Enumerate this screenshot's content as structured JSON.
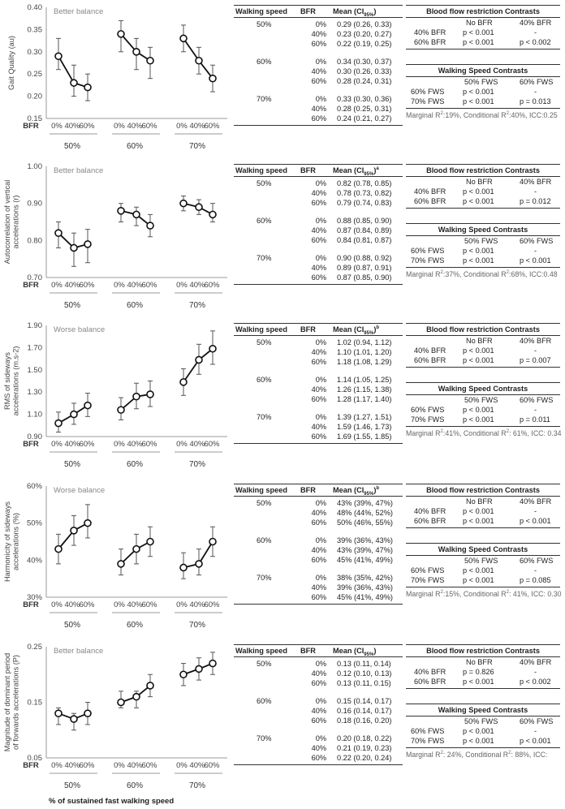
{
  "x_axis_title": "% of sustained fast walking speed",
  "bfr_axis_label": "BFR",
  "table_headers": {
    "speed": "Walking speed",
    "bfr": "BFR",
    "mean": "Mean (CI",
    "ci_sub": "95%",
    "close": ")"
  },
  "contrast_titles": {
    "bfr": "Blood flow restriction Contrasts",
    "speed": "Walking Speed Contrasts"
  },
  "contrast_cols": {
    "bfr": [
      "No BFR",
      "40% BFR"
    ],
    "speed": [
      "50% FWS",
      "60% FWS"
    ]
  },
  "contrast_rows": {
    "bfr": [
      "40% BFR",
      "60% BFR"
    ],
    "speed": [
      "60% FWS",
      "70% FWS"
    ]
  },
  "panels": [
    {
      "chart_data": {
        "type": "line",
        "ylabel": "Gait Quality (au)",
        "annotation": "Better balance",
        "ylim": [
          0.15,
          0.4
        ],
        "yticks": [
          "0.40",
          "0.35",
          "0.30",
          "0.25",
          "0.20",
          "0.15"
        ],
        "ytick_values": [
          0.4,
          0.35,
          0.3,
          0.25,
          0.2,
          0.15
        ],
        "groups": [
          "50%",
          "60%",
          "70%"
        ],
        "bfr_levels": [
          "0%",
          "40%",
          "60%"
        ],
        "values": [
          [
            0.29,
            0.23,
            0.22
          ],
          [
            0.34,
            0.3,
            0.28
          ],
          [
            0.33,
            0.28,
            0.24
          ]
        ],
        "ci_low": [
          [
            0.26,
            0.2,
            0.19
          ],
          [
            0.3,
            0.26,
            0.24
          ],
          [
            0.3,
            0.25,
            0.21
          ]
        ],
        "ci_high": [
          [
            0.33,
            0.27,
            0.25
          ],
          [
            0.37,
            0.33,
            0.31
          ],
          [
            0.36,
            0.31,
            0.27
          ]
        ]
      },
      "header_mark": "",
      "table": [
        [
          "50%",
          "0%",
          "0.29 (0.26, 0.33)"
        ],
        [
          "",
          "40%",
          "0.23 (0.20, 0.27)"
        ],
        [
          "",
          "60%",
          "0.22 (0.19, 0.25)"
        ],
        [
          "60%",
          "0%",
          "0.34 (0.30, 0.37)"
        ],
        [
          "",
          "40%",
          "0.30 (0.26, 0.33)"
        ],
        [
          "",
          "60%",
          "0.28 (0.24, 0.31)"
        ],
        [
          "70%",
          "0%",
          "0.33 (0.30, 0.36)"
        ],
        [
          "",
          "40%",
          "0.28 (0.25, 0.31)"
        ],
        [
          "",
          "60%",
          "0.24 (0.21, 0.27)"
        ]
      ],
      "bfr_contrasts": [
        [
          "p < 0.001",
          "-"
        ],
        [
          "p < 0.001",
          "p < 0.002"
        ]
      ],
      "speed_contrasts": [
        [
          "p < 0.001",
          "-"
        ],
        [
          "p < 0.001",
          "p = 0.013"
        ]
      ],
      "marginal": "Marginal R",
      "marginal_r2": "19%",
      "conditional_r2": "40%",
      "icc": "0.25"
    },
    {
      "chart_data": {
        "type": "line",
        "ylabel": "Autocorrelation of vertical accelerations (r)",
        "annotation": "Better balance",
        "ylim": [
          0.7,
          1.0
        ],
        "yticks": [
          "1.00",
          "0.90",
          "0.80",
          "0.70"
        ],
        "ytick_values": [
          1.0,
          0.9,
          0.8,
          0.7
        ],
        "groups": [
          "50%",
          "60%",
          "70%"
        ],
        "bfr_levels": [
          "0%",
          "40%",
          "60%"
        ],
        "values": [
          [
            0.82,
            0.78,
            0.79
          ],
          [
            0.88,
            0.87,
            0.84
          ],
          [
            0.9,
            0.89,
            0.87
          ]
        ],
        "ci_low": [
          [
            0.78,
            0.73,
            0.74
          ],
          [
            0.85,
            0.84,
            0.81
          ],
          [
            0.88,
            0.87,
            0.85
          ]
        ],
        "ci_high": [
          [
            0.85,
            0.82,
            0.83
          ],
          [
            0.9,
            0.89,
            0.87
          ],
          [
            0.92,
            0.91,
            0.9
          ]
        ]
      },
      "header_mark": "a",
      "table": [
        [
          "50%",
          "0%",
          "0.82 (0.78, 0.85)"
        ],
        [
          "",
          "40%",
          "0.78 (0.73, 0.82)"
        ],
        [
          "",
          "60%",
          "0.79 (0.74, 0.83)"
        ],
        [
          "60%",
          "0%",
          "0.88 (0.85, 0.90)"
        ],
        [
          "",
          "40%",
          "0.87 (0.84, 0.89)"
        ],
        [
          "",
          "60%",
          "0.84 (0.81, 0.87)"
        ],
        [
          "70%",
          "0%",
          "0.90 (0.88, 0.92)"
        ],
        [
          "",
          "40%",
          "0.89 (0.87, 0.91)"
        ],
        [
          "",
          "60%",
          "0.87 (0.85, 0.90)"
        ]
      ],
      "bfr_contrasts": [
        [
          "p < 0.001",
          "-"
        ],
        [
          "p < 0.001",
          "p = 0.012"
        ]
      ],
      "speed_contrasts": [
        [
          "p < 0.001",
          "-"
        ],
        [
          "p < 0.001",
          "p < 0.001"
        ]
      ],
      "marginal": "Marginal R",
      "marginal_r2": "37%",
      "conditional_r2": "68%",
      "icc": "0.48"
    },
    {
      "chart_data": {
        "type": "line",
        "ylabel": "RMS of sideways accelerations (m.s-2)",
        "annotation": "Worse balance",
        "ylim": [
          0.9,
          1.9
        ],
        "yticks": [
          "1.90",
          "1.70",
          "1.50",
          "1.30",
          "1.10",
          "0.90"
        ],
        "ytick_values": [
          1.9,
          1.7,
          1.5,
          1.3,
          1.1,
          0.9
        ],
        "groups": [
          "50%",
          "60%",
          "70%"
        ],
        "bfr_levels": [
          "0%",
          "40%",
          "60%"
        ],
        "values": [
          [
            1.02,
            1.1,
            1.18
          ],
          [
            1.14,
            1.26,
            1.28
          ],
          [
            1.39,
            1.59,
            1.69
          ]
        ],
        "ci_low": [
          [
            0.94,
            1.01,
            1.08
          ],
          [
            1.05,
            1.15,
            1.17
          ],
          [
            1.27,
            1.46,
            1.55
          ]
        ],
        "ci_high": [
          [
            1.12,
            1.2,
            1.29
          ],
          [
            1.25,
            1.38,
            1.4
          ],
          [
            1.51,
            1.73,
            1.85
          ]
        ]
      },
      "header_mark": "b",
      "table": [
        [
          "50%",
          "0%",
          "1.02 (0.94, 1.12)"
        ],
        [
          "",
          "40%",
          "1.10 (1.01, 1.20)"
        ],
        [
          "",
          "60%",
          "1.18 (1.08, 1.29)"
        ],
        [
          "60%",
          "0%",
          "1.14 (1.05, 1.25)"
        ],
        [
          "",
          "40%",
          "1.26 (1.15, 1.38)"
        ],
        [
          "",
          "60%",
          "1.28 (1.17, 1.40)"
        ],
        [
          "70%",
          "0%",
          "1.39 (1.27, 1.51)"
        ],
        [
          "",
          "40%",
          "1.59 (1.46, 1.73)"
        ],
        [
          "",
          "60%",
          "1.69 (1.55, 1.85)"
        ]
      ],
      "bfr_contrasts": [
        [
          "p < 0.001",
          "-"
        ],
        [
          "p < 0.001",
          "p = 0.007"
        ]
      ],
      "speed_contrasts": [
        [
          "p < 0.001",
          "-"
        ],
        [
          "p < 0.001",
          "p = 0.011"
        ]
      ],
      "marginal": "Marginal R",
      "marginal_r2": "41%",
      "conditional_r2": " 61%",
      "icc": " 0.34"
    },
    {
      "chart_data": {
        "type": "line",
        "ylabel": "Harmonicity of sideways accelerations (%)",
        "annotation": "Worse balance",
        "ylim": [
          30,
          60
        ],
        "yticks": [
          "60%",
          "50%",
          "40%",
          "30%"
        ],
        "ytick_values": [
          60,
          50,
          40,
          30
        ],
        "groups": [
          "50%",
          "60%",
          "70%"
        ],
        "bfr_levels": [
          "0%",
          "40%",
          "60%"
        ],
        "values": [
          [
            43,
            48,
            50
          ],
          [
            39,
            43,
            45
          ],
          [
            38,
            39,
            45
          ]
        ],
        "ci_low": [
          [
            39,
            44,
            46
          ],
          [
            36,
            39,
            41
          ],
          [
            35,
            36,
            41
          ]
        ],
        "ci_high": [
          [
            47,
            52,
            55
          ],
          [
            43,
            47,
            49
          ],
          [
            42,
            43,
            49
          ]
        ]
      },
      "header_mark": "b",
      "table": [
        [
          "50%",
          "0%",
          "43% (39%, 47%)"
        ],
        [
          "",
          "40%",
          "48% (44%, 52%)"
        ],
        [
          "",
          "60%",
          "50% (46%, 55%)"
        ],
        [
          "60%",
          "0%",
          "39% (36%, 43%)"
        ],
        [
          "",
          "40%",
          "43% (39%, 47%)"
        ],
        [
          "",
          "60%",
          "45% (41%, 49%)"
        ],
        [
          "70%",
          "0%",
          "38% (35%, 42%)"
        ],
        [
          "",
          "40%",
          "39% (36%, 43%)"
        ],
        [
          "",
          "60%",
          "45% (41%, 49%)"
        ]
      ],
      "bfr_contrasts": [
        [
          "p < 0.001",
          "-"
        ],
        [
          "p < 0.001",
          "p < 0.001"
        ]
      ],
      "speed_contrasts": [
        [
          "p < 0.001",
          "-"
        ],
        [
          "p < 0.001",
          "p = 0.085"
        ]
      ],
      "marginal": "Marginal R",
      "marginal_r2": "15%",
      "conditional_r2": " 41%",
      "icc": " 0.30"
    },
    {
      "chart_data": {
        "type": "line",
        "ylabel": "Magnitude of dominant period of forwards accelerations (P)",
        "annotation": "Better balance",
        "ylim": [
          0.05,
          0.25
        ],
        "yticks": [
          "0.25",
          "0.15",
          "0.05"
        ],
        "ytick_values": [
          0.25,
          0.15,
          0.05
        ],
        "groups": [
          "50%",
          "60%",
          "70%"
        ],
        "bfr_levels": [
          "0%",
          "40%",
          "60%"
        ],
        "values": [
          [
            0.13,
            0.12,
            0.13
          ],
          [
            0.15,
            0.16,
            0.18
          ],
          [
            0.2,
            0.21,
            0.22
          ]
        ],
        "ci_low": [
          [
            0.11,
            0.1,
            0.11
          ],
          [
            0.14,
            0.14,
            0.16
          ],
          [
            0.18,
            0.19,
            0.2
          ]
        ],
        "ci_high": [
          [
            0.14,
            0.13,
            0.15
          ],
          [
            0.17,
            0.17,
            0.2
          ],
          [
            0.22,
            0.23,
            0.24
          ]
        ]
      },
      "header_mark": "",
      "table": [
        [
          "50%",
          "0%",
          "0.13 (0.11, 0.14)"
        ],
        [
          "",
          "40%",
          "0.12 (0.10, 0.13)"
        ],
        [
          "",
          "60%",
          "0.13 (0.11, 0.15)"
        ],
        [
          "60%",
          "0%",
          "0.15 (0.14, 0.17)"
        ],
        [
          "",
          "40%",
          "0.16 (0.14, 0.17)"
        ],
        [
          "",
          "60%",
          "0.18 (0.16, 0.20)"
        ],
        [
          "70%",
          "0%",
          "0.20 (0.18, 0.22)"
        ],
        [
          "",
          "40%",
          "0.21 (0.19, 0.23)"
        ],
        [
          "",
          "60%",
          "0.22 (0.20, 0.24)"
        ]
      ],
      "bfr_contrasts": [
        [
          "p = 0.826",
          "-"
        ],
        [
          "p < 0.001",
          "p < 0.002"
        ]
      ],
      "speed_contrasts": [
        [
          "p < 0.001",
          "-"
        ],
        [
          "p < 0.001",
          "p < 0.001"
        ]
      ],
      "marginal": "Marginal R",
      "marginal_r2": " 24%",
      "conditional_r2": " 88%",
      "icc": ""
    }
  ]
}
